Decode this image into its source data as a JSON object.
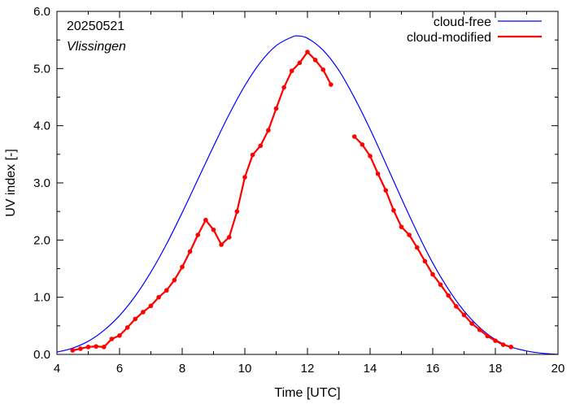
{
  "chart_data": {
    "type": "line",
    "xlabel": "Time  [UTC]",
    "ylabel": "UV index  [-]",
    "xlim": [
      4,
      20
    ],
    "ylim": [
      0,
      6
    ],
    "x_ticks": [
      "4",
      "6",
      "8",
      "10",
      "12",
      "14",
      "16",
      "18",
      "20"
    ],
    "y_ticks": [
      "0.0",
      "1.0",
      "2.0",
      "3.0",
      "4.0",
      "5.0",
      "6.0"
    ],
    "annotations": {
      "date": "20250521",
      "location": "Vlissingen"
    },
    "legend_position": "top-right",
    "series": [
      {
        "name": "cloud-free",
        "color": "#0000ff",
        "x": [
          4.0,
          4.5,
          5.0,
          5.5,
          6.0,
          6.5,
          7.0,
          7.5,
          8.0,
          8.5,
          9.0,
          9.5,
          10.0,
          10.5,
          11.0,
          11.5,
          11.7,
          12.0,
          12.5,
          13.0,
          13.5,
          14.0,
          14.5,
          15.0,
          15.5,
          16.0,
          16.5,
          17.0,
          17.5,
          18.0,
          18.5,
          19.0,
          19.5,
          20.0
        ],
        "values": [
          0.04,
          0.11,
          0.23,
          0.42,
          0.68,
          1.02,
          1.44,
          1.93,
          2.48,
          3.06,
          3.64,
          4.2,
          4.7,
          5.11,
          5.4,
          5.55,
          5.57,
          5.53,
          5.32,
          4.97,
          4.49,
          3.94,
          3.34,
          2.73,
          2.14,
          1.6,
          1.14,
          0.76,
          0.47,
          0.26,
          0.13,
          0.06,
          0.02,
          0.0
        ]
      },
      {
        "name": "cloud-modified",
        "color": "#ff0000",
        "segments": [
          {
            "x": [
              4.5,
              4.75,
              5.0,
              5.25,
              5.5,
              5.75,
              6.0,
              6.25,
              6.5,
              6.75,
              7.0,
              7.25,
              7.5,
              7.75,
              8.0,
              8.25,
              8.5,
              8.75,
              9.0,
              9.25,
              9.5,
              9.75,
              10.0,
              10.25,
              10.5,
              10.75,
              11.0,
              11.25,
              11.5,
              11.75,
              12.0,
              12.25,
              12.5,
              12.75
            ],
            "values": [
              0.07,
              0.1,
              0.13,
              0.14,
              0.13,
              0.27,
              0.33,
              0.47,
              0.62,
              0.74,
              0.85,
              1.0,
              1.12,
              1.3,
              1.53,
              1.8,
              2.09,
              2.35,
              2.18,
              1.92,
              2.05,
              2.5,
              3.1,
              3.49,
              3.65,
              3.92,
              4.3,
              4.67,
              4.96,
              5.1,
              5.29,
              5.15,
              4.98,
              4.72
            ]
          },
          {
            "x": [
              13.5,
              13.75,
              14.0,
              14.25,
              14.5,
              14.75,
              15.0,
              15.25,
              15.5,
              15.75,
              16.0,
              16.25,
              16.5,
              16.75,
              17.0,
              17.25,
              17.5,
              17.75,
              18.0,
              18.25,
              18.5
            ],
            "values": [
              3.81,
              3.67,
              3.47,
              3.16,
              2.87,
              2.52,
              2.23,
              2.09,
              1.87,
              1.63,
              1.4,
              1.22,
              1.03,
              0.84,
              0.69,
              0.54,
              0.43,
              0.32,
              0.24,
              0.17,
              0.13
            ]
          }
        ]
      }
    ]
  }
}
